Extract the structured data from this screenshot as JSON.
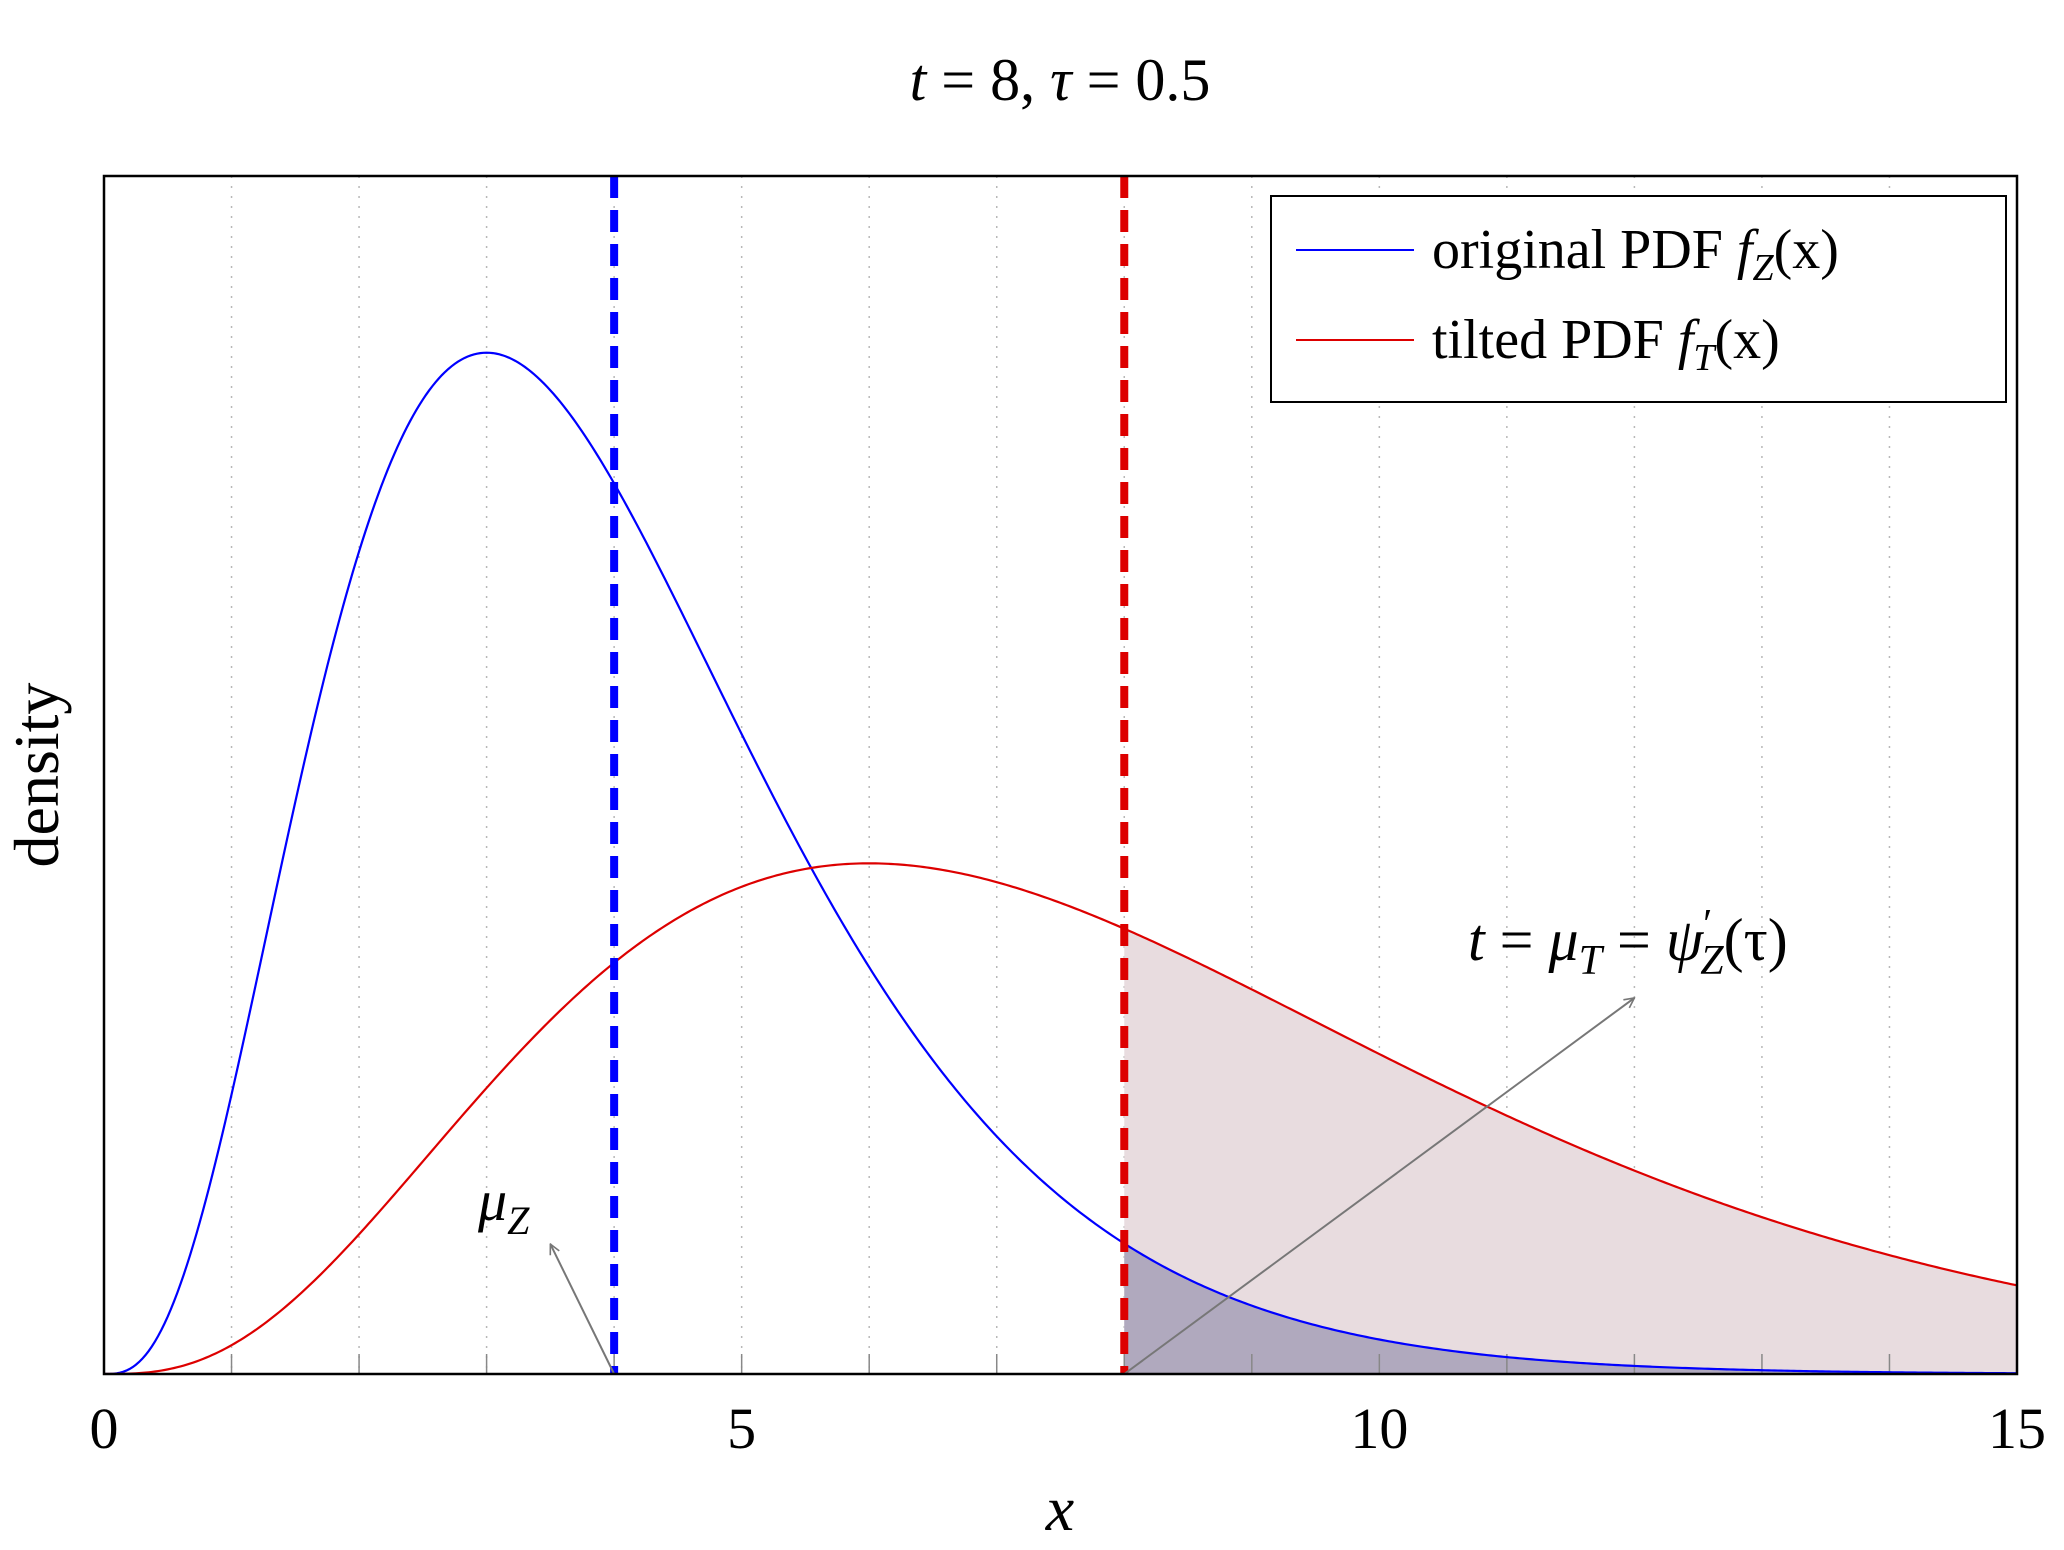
{
  "chart_data": {
    "type": "line",
    "title": {
      "t_var": "t",
      "t_val": "8",
      "tau_var": "τ",
      "tau_val": "0.5"
    },
    "xlabel": "x",
    "ylabel": "density",
    "xlim": [
      0,
      15
    ],
    "ylim": [
      0,
      0.2628
    ],
    "xticks": [
      {
        "value": 0,
        "label": "0"
      },
      {
        "value": 5,
        "label": "5"
      },
      {
        "value": 10,
        "label": "10"
      },
      {
        "value": 15,
        "label": "15"
      }
    ],
    "minor_ticks": [
      1,
      2,
      3,
      4,
      6,
      7,
      8,
      9,
      11,
      12,
      13,
      14
    ],
    "grid": "vertical dotted at integer x",
    "legend_placement": "top-right",
    "series": [
      {
        "name_text": "original PDF ",
        "name_fn": "f",
        "name_sub": "Z",
        "name_arg": "(x)",
        "color": "#0000ff",
        "distribution": "gamma",
        "shape": 4,
        "scale": 1
      },
      {
        "name_text": "tilted PDF ",
        "name_fn": "f",
        "name_sub": "T",
        "name_arg": "(x)",
        "color": "#dd0000",
        "distribution": "gamma",
        "shape": 4,
        "scale": 2
      }
    ],
    "vlines": [
      {
        "x": 4,
        "color": "#0000ff",
        "style": "dashed"
      },
      {
        "x": 8,
        "color": "#dd0000",
        "style": "dashed"
      }
    ],
    "shaded_regions": [
      {
        "from_x": 8,
        "to_x": 15,
        "under": "tilted",
        "color": "#e8dcdf"
      },
      {
        "from_x": 8,
        "to_x": 15,
        "under": "original",
        "color": "#b0a9be"
      }
    ],
    "annotations": {
      "mu_z": {
        "base": "μ",
        "sub": "Z",
        "arrow_from": [
          4,
          0
        ],
        "arrow_to": [
          3.5,
          0.0285
        ]
      },
      "t_eq": {
        "t": "t",
        "eq": "=",
        "mu": "μ",
        "mu_sub": "T",
        "psi": "ψ",
        "prime": "′",
        "psi_sub": "Z",
        "arg": "(τ)",
        "arrow_from": [
          8,
          0
        ],
        "arrow_to": [
          12,
          0.0825
        ]
      }
    }
  }
}
